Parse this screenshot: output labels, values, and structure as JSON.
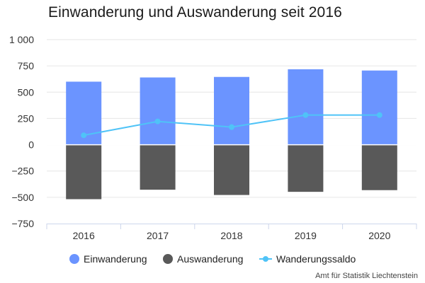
{
  "chart_data": {
    "type": "bar",
    "title": "Einwanderung und Auswanderung seit 2016",
    "categories": [
      "2016",
      "2017",
      "2018",
      "2019",
      "2020"
    ],
    "series": [
      {
        "name": "Einwanderung",
        "type": "bar",
        "color": "#6b94ff",
        "values": [
          600,
          640,
          645,
          718,
          706
        ]
      },
      {
        "name": "Auswanderung",
        "type": "bar",
        "color": "#595959",
        "values": [
          -518,
          -428,
          -478,
          -448,
          -432
        ]
      },
      {
        "name": "Wanderungssaldo",
        "type": "line",
        "color": "#4fc3f7",
        "values": [
          90,
          222,
          168,
          282,
          282
        ]
      }
    ],
    "ylim": [
      -750,
      1000
    ],
    "yticks": [
      1000,
      750,
      500,
      250,
      0,
      -250,
      -500,
      -750
    ],
    "ytick_labels": [
      "1 000",
      "750",
      "500",
      "250",
      "0",
      "−250",
      "−500",
      "−750"
    ],
    "xlabel": "",
    "ylabel": "",
    "grid": true,
    "legend_position": "bottom",
    "source": "Amt für Statistik Liechtenstein"
  }
}
